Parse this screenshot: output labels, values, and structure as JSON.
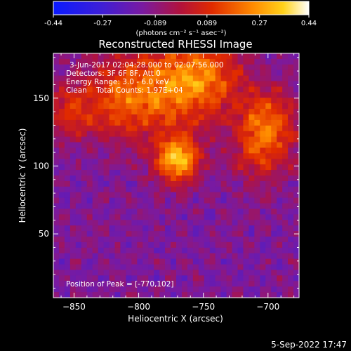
{
  "colorbar": {
    "ticks": [
      "-0.44",
      "-0.27",
      "-0.089",
      "0.089",
      "0.27",
      "0.44"
    ],
    "tick_values": [
      -0.44,
      -0.27,
      -0.089,
      0.089,
      0.27,
      0.44
    ],
    "range": [
      -0.44,
      0.44
    ],
    "unit_label": "(photons cm⁻² s⁻¹ asec⁻²)"
  },
  "overlay": {
    "line1": "3-Jun-2017 02:04:28.000 to 02:07:56.000",
    "line2": "Detectors: 3F 6F 8F, Att 0",
    "line3": "Energy Range: 3.0 - 6.0 keV",
    "line4": "Clean    Total Counts: 1.97E+04",
    "peak": "Position of Peak = [-770,102]"
  },
  "footer": {
    "date": "5-Sep-2022 17:47"
  },
  "chart_data": {
    "type": "heatmap",
    "title": "Reconstructed RHESSI Image",
    "xlabel": "Heliocentric X (arcsec)",
    "ylabel": "Heliocentric Y (arcsec)",
    "xlim": [
      -866,
      -676
    ],
    "ylim": [
      3,
      183
    ],
    "xticks": [
      -850,
      -800,
      -750,
      -700
    ],
    "xtick_labels": [
      "−850",
      "−800",
      "−750",
      "−700"
    ],
    "yticks": [
      50,
      100,
      150
    ],
    "ytick_labels": [
      "50",
      "100",
      "150"
    ],
    "colormap": "blue-purple-red-orange-yellow-white",
    "peak_position": [
      -770,
      102
    ],
    "sources": [
      {
        "x": -770,
        "y": 105,
        "amplitude": 0.44,
        "width": 12
      },
      {
        "x": -812,
        "y": 150,
        "amplitude": 0.28,
        "width": 22
      },
      {
        "x": -770,
        "y": 158,
        "amplitude": 0.26,
        "width": 22
      },
      {
        "x": -745,
        "y": 168,
        "amplitude": 0.22,
        "width": 20
      },
      {
        "x": -700,
        "y": 135,
        "amplitude": 0.26,
        "width": 16
      },
      {
        "x": -705,
        "y": 110,
        "amplitude": 0.2,
        "width": 16
      },
      {
        "x": -855,
        "y": 140,
        "amplitude": 0.18,
        "width": 14
      }
    ],
    "background_level": -0.12,
    "grid": false,
    "legend": "colorbar-top"
  }
}
